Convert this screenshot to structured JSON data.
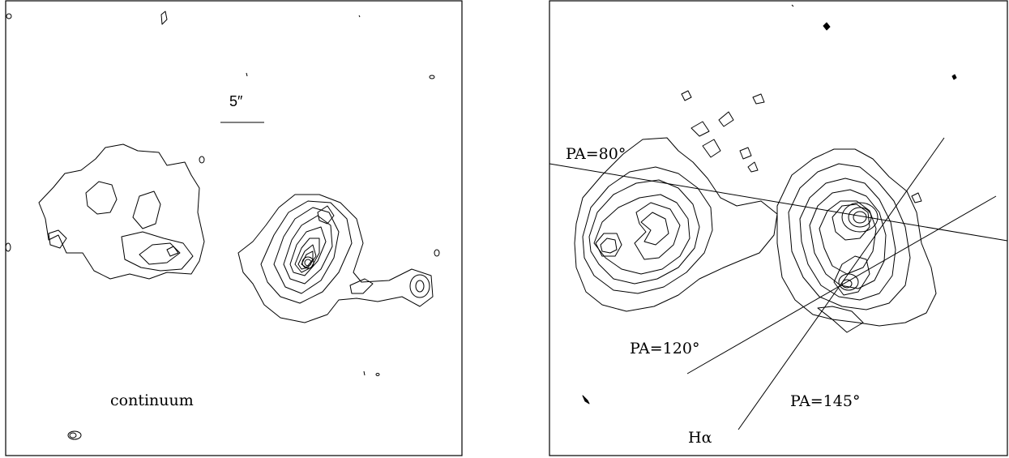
{
  "left_panel": {
    "label": "continuum",
    "scale_bar_label": "5″"
  },
  "right_panel": {
    "label": "Hα",
    "pa_labels": [
      "PA=80°",
      "PA=120°",
      "PA=145°"
    ]
  }
}
